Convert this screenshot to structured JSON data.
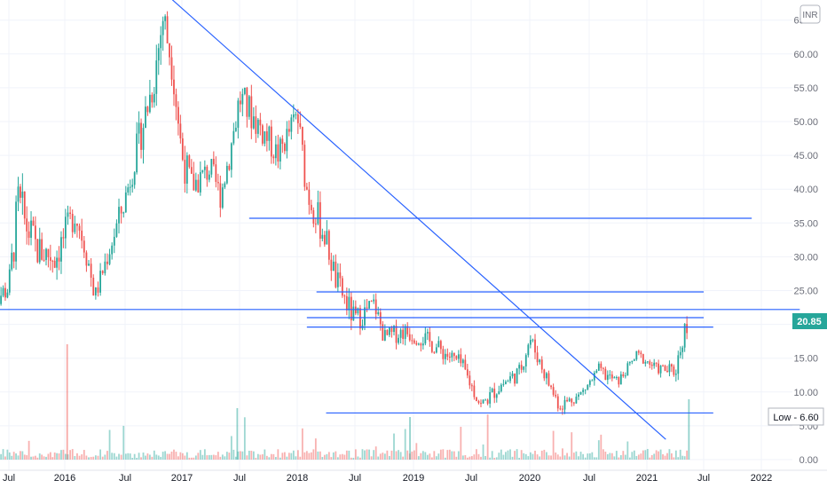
{
  "chart_data": {
    "type": "candlestick",
    "currency": "INR",
    "x_ticks": [
      "Jul",
      "2016",
      "Jul",
      "2017",
      "Jul",
      "2018",
      "Jul",
      "2019",
      "Jul",
      "2020",
      "Jul",
      "2021",
      "Jul",
      "2022"
    ],
    "y_ticks": [
      "0.00",
      "5.00",
      "10.00",
      "15.00",
      "20.00",
      "25.00",
      "30.00",
      "35.00",
      "40.00",
      "45.00",
      "50.00",
      "55.00",
      "60.00",
      "65.00"
    ],
    "ylim": [
      0,
      68
    ],
    "last_price": "20.85",
    "low_label": "Low - 6.60",
    "colors": {
      "up": "#26a69a",
      "down": "#ef5350",
      "line": "#2962ff",
      "grid": "#f0f3fa",
      "price_badge": "#26a69a"
    },
    "price_path": [
      [
        "2015-05",
        22,
        24
      ],
      [
        "2015-07",
        24,
        27
      ],
      [
        "2015-08",
        34,
        41
      ],
      [
        "2015-10",
        29,
        33
      ],
      [
        "2015-12",
        28,
        32
      ],
      [
        "2016-02",
        35,
        38
      ],
      [
        "2016-03",
        30,
        34
      ],
      [
        "2016-04",
        23,
        25
      ],
      [
        "2016-05",
        28,
        30
      ],
      [
        "2016-07",
        37,
        40
      ],
      [
        "2016-08",
        43,
        46
      ],
      [
        "2016-10",
        54,
        58
      ],
      [
        "2016-11",
        63,
        68
      ],
      [
        "2016-12",
        57,
        60
      ],
      [
        "2017-01",
        43,
        47
      ],
      [
        "2017-02",
        39,
        42
      ],
      [
        "2017-04",
        42,
        44
      ],
      [
        "2017-05",
        38,
        40
      ],
      [
        "2017-06",
        44,
        47
      ],
      [
        "2017-07",
        52,
        55
      ],
      [
        "2017-09",
        48,
        51
      ],
      [
        "2017-11",
        44,
        46
      ],
      [
        "2018-01",
        50,
        52
      ],
      [
        "2018-02",
        38,
        42
      ],
      [
        "2018-04",
        31,
        34
      ],
      [
        "2018-05",
        25,
        28
      ],
      [
        "2018-07",
        19,
        22
      ],
      [
        "2018-09",
        22,
        24
      ],
      [
        "2018-10",
        17,
        19
      ],
      [
        "2018-12",
        18,
        20
      ],
      [
        "2019-02",
        17,
        19
      ],
      [
        "2019-04",
        15,
        17
      ],
      [
        "2019-06",
        13,
        15
      ],
      [
        "2019-07",
        10,
        12
      ],
      [
        "2019-08",
        7,
        9
      ],
      [
        "2019-10",
        10,
        12
      ],
      [
        "2019-12",
        12,
        14
      ],
      [
        "2020-01",
        17,
        19
      ],
      [
        "2020-03",
        10,
        12
      ],
      [
        "2020-04",
        7,
        9
      ],
      [
        "2020-06",
        9,
        10
      ],
      [
        "2020-08",
        12,
        14
      ],
      [
        "2020-10",
        11,
        12
      ],
      [
        "2020-12",
        15,
        16
      ],
      [
        "2021-02",
        13,
        14
      ],
      [
        "2021-04",
        12,
        14
      ],
      [
        "2021-05",
        18,
        21
      ]
    ],
    "lines": [
      {
        "type": "trendline",
        "from": [
          "2016-12",
          68
        ],
        "to": [
          "2021-03",
          3
        ]
      },
      {
        "type": "horizontal",
        "y": 35.7,
        "from": "2017-08",
        "to": "2021-12"
      },
      {
        "type": "horizontal",
        "y": 24.8,
        "from": "2018-03",
        "to": "2021-07"
      },
      {
        "type": "horizontal",
        "y": 22.2,
        "from": "2015-05",
        "to": "2022-05"
      },
      {
        "type": "horizontal",
        "y": 21.0,
        "from": "2018-02",
        "to": "2021-07"
      },
      {
        "type": "horizontal",
        "y": 19.6,
        "from": "2018-02",
        "to": "2021-08"
      },
      {
        "type": "horizontal",
        "y": 6.9,
        "from": "2018-04",
        "to": "2021-08"
      }
    ]
  }
}
